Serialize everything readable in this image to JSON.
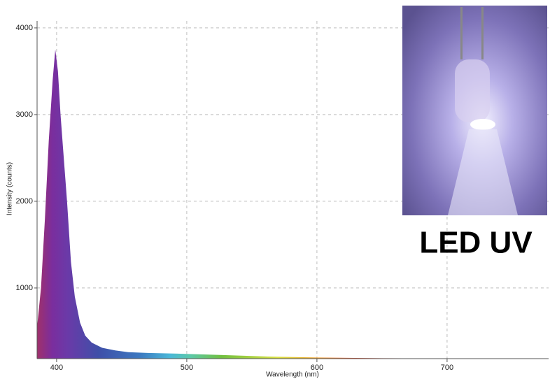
{
  "chart_data": {
    "type": "area",
    "x_label": "Wavelength (nm)",
    "y_label": "Intensity (counts)",
    "annotation": "LED UV",
    "x": [
      385,
      388,
      391,
      394,
      397,
      399,
      401,
      403,
      405,
      408,
      411,
      414,
      418,
      422,
      427,
      435,
      445,
      455,
      470,
      500,
      530,
      560,
      600,
      650,
      700,
      778
    ],
    "values": [
      550,
      1000,
      1800,
      2700,
      3400,
      3750,
      3500,
      3000,
      2600,
      2000,
      1300,
      900,
      600,
      450,
      370,
      310,
      280,
      260,
      250,
      240,
      225,
      210,
      198,
      190,
      187,
      186
    ],
    "xlim": [
      385,
      778
    ],
    "ylim": [
      185,
      4080
    ],
    "xticks": [
      400,
      500,
      600,
      700
    ],
    "yticks": [
      1000,
      2000,
      3000,
      4000
    ],
    "grid": true
  }
}
